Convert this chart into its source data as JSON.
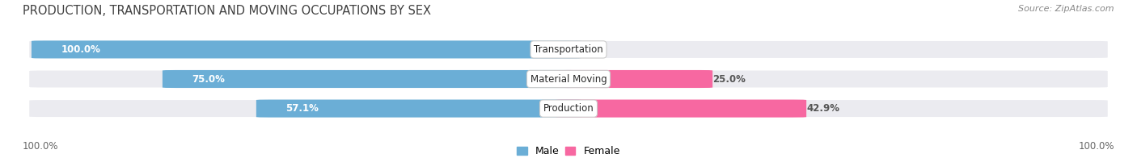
{
  "title": "PRODUCTION, TRANSPORTATION AND MOVING OCCUPATIONS BY SEX",
  "source": "Source: ZipAtlas.com",
  "categories": [
    "Transportation",
    "Material Moving",
    "Production"
  ],
  "male_pct": [
    100.0,
    75.0,
    57.1
  ],
  "female_pct": [
    0.0,
    25.0,
    42.9
  ],
  "male_color": "#6baed6",
  "female_color": "#f768a1",
  "male_color_light": "#c6dbef",
  "female_color_light": "#fbb4c9",
  "bar_bg_color": "#ebebf0",
  "bar_height": 0.62,
  "axis_label_left": "100.0%",
  "axis_label_right": "100.0%",
  "legend_male": "Male",
  "legend_female": "Female",
  "title_fontsize": 10.5,
  "source_fontsize": 8,
  "bar_label_fontsize": 8.5,
  "category_fontsize": 8.5,
  "figsize": [
    14.06,
    1.96
  ],
  "dpi": 100,
  "bg_color": "#ffffff",
  "title_color": "#404040",
  "source_color": "#888888",
  "label_color_inside": "#ffffff",
  "label_color_outside": "#555555"
}
